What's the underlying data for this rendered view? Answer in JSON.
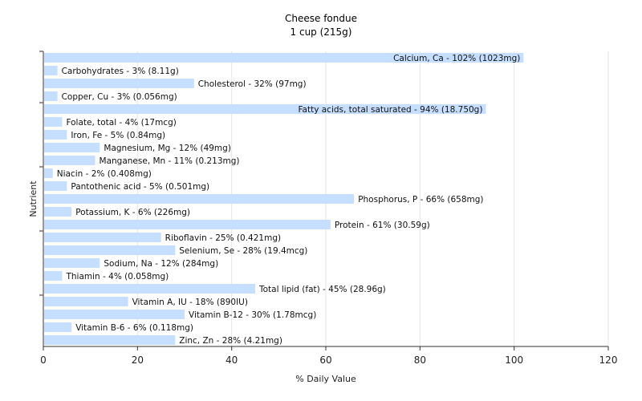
{
  "chart_data": {
    "type": "bar",
    "orientation": "horizontal",
    "title": "Cheese fondue",
    "subtitle": "1 cup (215g)",
    "xlabel": "% Daily Value",
    "ylabel": "Nutrient",
    "xlim": [
      0,
      120
    ],
    "xticks": [
      0,
      20,
      40,
      60,
      80,
      100,
      120
    ],
    "grid": true,
    "bar_color": "#c6deff",
    "grid_color": "#e6e6e6",
    "categories": [
      "Calcium, Ca",
      "Carbohydrates",
      "Cholesterol",
      "Copper, Cu",
      "Fatty acids, total saturated",
      "Folate, total",
      "Iron, Fe",
      "Magnesium, Mg",
      "Manganese, Mn",
      "Niacin",
      "Pantothenic acid",
      "Phosphorus, P",
      "Potassium, K",
      "Protein",
      "Riboflavin",
      "Selenium, Se",
      "Sodium, Na",
      "Thiamin",
      "Total lipid (fat)",
      "Vitamin A, IU",
      "Vitamin B-12",
      "Vitamin B-6",
      "Zinc, Zn"
    ],
    "values": [
      102,
      3,
      32,
      3,
      94,
      4,
      5,
      12,
      11,
      2,
      5,
      66,
      6,
      61,
      25,
      28,
      12,
      4,
      45,
      18,
      30,
      6,
      28
    ],
    "labels": [
      "Calcium, Ca - 102% (1023mg)",
      "Carbohydrates - 3% (8.11g)",
      "Cholesterol - 32% (97mg)",
      "Copper, Cu - 3% (0.056mg)",
      "Fatty acids, total saturated - 94% (18.750g)",
      "Folate, total - 4% (17mcg)",
      "Iron, Fe - 5% (0.84mg)",
      "Magnesium, Mg - 12% (49mg)",
      "Manganese, Mn - 11% (0.213mg)",
      "Niacin - 2% (0.408mg)",
      "Pantothenic acid - 5% (0.501mg)",
      "Phosphorus, P - 66% (658mg)",
      "Potassium, K - 6% (226mg)",
      "Protein - 61% (30.59g)",
      "Riboflavin - 25% (0.421mg)",
      "Selenium, Se - 28% (19.4mcg)",
      "Sodium, Na - 12% (284mg)",
      "Thiamin - 4% (0.058mg)",
      "Total lipid (fat) - 45% (28.96g)",
      "Vitamin A, IU - 18% (890IU)",
      "Vitamin B-12 - 30% (1.78mcg)",
      "Vitamin B-6 - 6% (0.118mg)",
      "Zinc, Zn - 28% (4.21mg)"
    ]
  }
}
